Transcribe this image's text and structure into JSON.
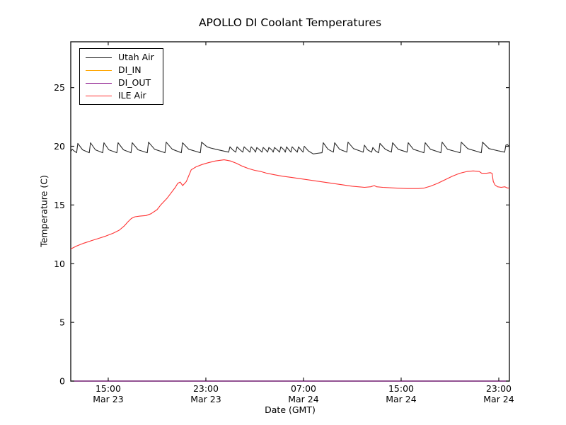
{
  "chart_data": {
    "type": "line",
    "title": "APOLLO DI Coolant Temperatures",
    "xlabel": "Date (GMT)",
    "ylabel": "Temperature (C)",
    "xlim": [
      11.93,
      47.87
    ],
    "ylim": [
      0,
      28.9
    ],
    "x_unit": "hours since Mar 23 00:00 GMT",
    "grid": false,
    "legend_position": "upper-left",
    "yticks": [
      0,
      5,
      10,
      15,
      20,
      25
    ],
    "xticks": [
      {
        "t": 15,
        "time": "15:00",
        "date": "Mar 23"
      },
      {
        "t": 23,
        "time": "23:00",
        "date": "Mar 23"
      },
      {
        "t": 31,
        "time": "07:00",
        "date": "Mar 24"
      },
      {
        "t": 39,
        "time": "15:00",
        "date": "Mar 24"
      },
      {
        "t": 47,
        "time": "23:00",
        "date": "Mar 24"
      }
    ],
    "series": [
      {
        "name": "Utah Air",
        "color": "#2b2b2b",
        "points": [
          [
            11.93,
            19.55
          ],
          [
            12.05,
            19.75
          ],
          [
            12.2,
            19.6
          ],
          [
            12.41,
            19.45
          ],
          [
            12.51,
            20.25
          ],
          [
            12.9,
            19.7
          ],
          [
            13.45,
            19.45
          ],
          [
            13.55,
            20.3
          ],
          [
            13.95,
            19.7
          ],
          [
            14.55,
            19.45
          ],
          [
            14.65,
            20.3
          ],
          [
            15.05,
            19.7
          ],
          [
            15.71,
            19.45
          ],
          [
            15.81,
            20.3
          ],
          [
            16.25,
            19.7
          ],
          [
            16.87,
            19.45
          ],
          [
            16.97,
            20.3
          ],
          [
            17.45,
            19.7
          ],
          [
            18.2,
            19.45
          ],
          [
            18.3,
            20.35
          ],
          [
            18.8,
            19.75
          ],
          [
            19.65,
            19.45
          ],
          [
            19.75,
            20.35
          ],
          [
            20.25,
            19.75
          ],
          [
            20.99,
            19.45
          ],
          [
            21.09,
            20.3
          ],
          [
            21.6,
            19.75
          ],
          [
            22.55,
            19.45
          ],
          [
            22.65,
            20.35
          ],
          [
            23.1,
            19.95
          ],
          [
            23.4,
            19.85
          ],
          [
            23.8,
            19.75
          ],
          [
            24.87,
            19.5
          ],
          [
            24.97,
            19.95
          ],
          [
            25.2,
            19.7
          ],
          [
            25.45,
            19.5
          ],
          [
            25.55,
            19.95
          ],
          [
            25.8,
            19.7
          ],
          [
            26.03,
            19.5
          ],
          [
            26.13,
            19.95
          ],
          [
            26.4,
            19.7
          ],
          [
            26.61,
            19.5
          ],
          [
            26.71,
            19.95
          ],
          [
            26.95,
            19.7
          ],
          [
            27.07,
            19.5
          ],
          [
            27.17,
            19.9
          ],
          [
            27.4,
            19.7
          ],
          [
            27.6,
            19.5
          ],
          [
            27.7,
            19.9
          ],
          [
            27.9,
            19.7
          ],
          [
            28.06,
            19.5
          ],
          [
            28.16,
            19.9
          ],
          [
            28.4,
            19.7
          ],
          [
            28.52,
            19.5
          ],
          [
            28.62,
            19.9
          ],
          [
            28.85,
            19.7
          ],
          [
            29.04,
            19.5
          ],
          [
            29.14,
            19.95
          ],
          [
            29.4,
            19.7
          ],
          [
            29.51,
            19.5
          ],
          [
            29.61,
            19.95
          ],
          [
            29.8,
            19.7
          ],
          [
            29.97,
            19.5
          ],
          [
            30.07,
            19.95
          ],
          [
            30.3,
            19.7
          ],
          [
            30.49,
            19.5
          ],
          [
            30.59,
            19.95
          ],
          [
            30.8,
            19.7
          ],
          [
            30.96,
            19.5
          ],
          [
            31.06,
            20.0
          ],
          [
            31.4,
            19.6
          ],
          [
            31.8,
            19.35
          ],
          [
            32.1,
            19.4
          ],
          [
            32.52,
            19.45
          ],
          [
            32.62,
            20.3
          ],
          [
            33.0,
            19.75
          ],
          [
            33.45,
            19.5
          ],
          [
            33.55,
            20.3
          ],
          [
            33.95,
            19.75
          ],
          [
            34.55,
            19.5
          ],
          [
            34.65,
            20.35
          ],
          [
            35.1,
            19.8
          ],
          [
            35.89,
            19.5
          ],
          [
            35.99,
            20.1
          ],
          [
            36.25,
            19.7
          ],
          [
            36.58,
            19.5
          ],
          [
            36.68,
            19.9
          ],
          [
            36.9,
            19.6
          ],
          [
            37.16,
            19.45
          ],
          [
            37.26,
            20.25
          ],
          [
            37.7,
            19.75
          ],
          [
            38.2,
            19.5
          ],
          [
            38.3,
            20.3
          ],
          [
            38.75,
            19.75
          ],
          [
            39.48,
            19.5
          ],
          [
            39.58,
            20.3
          ],
          [
            40.0,
            19.75
          ],
          [
            40.87,
            19.45
          ],
          [
            40.97,
            20.3
          ],
          [
            41.4,
            19.75
          ],
          [
            42.26,
            19.45
          ],
          [
            42.36,
            20.35
          ],
          [
            42.8,
            19.75
          ],
          [
            43.83,
            19.45
          ],
          [
            43.93,
            20.35
          ],
          [
            44.45,
            19.8
          ],
          [
            45.57,
            19.45
          ],
          [
            45.67,
            20.35
          ],
          [
            46.2,
            19.8
          ],
          [
            47.0,
            19.6
          ],
          [
            47.48,
            19.5
          ],
          [
            47.58,
            20.1
          ],
          [
            47.7,
            20.15
          ],
          [
            47.87,
            19.95
          ]
        ]
      },
      {
        "name": "DI_IN",
        "color": "#ffa500",
        "points": [
          [
            11.93,
            0
          ],
          [
            47.87,
            0
          ]
        ]
      },
      {
        "name": "DI_OUT",
        "color": "#800080",
        "points": [
          [
            11.93,
            0
          ],
          [
            47.87,
            0
          ]
        ]
      },
      {
        "name": "ILE Air",
        "color": "#ff3333",
        "points": [
          [
            11.93,
            11.25
          ],
          [
            12.4,
            11.5
          ],
          [
            13.0,
            11.75
          ],
          [
            13.6,
            11.95
          ],
          [
            14.2,
            12.15
          ],
          [
            14.8,
            12.35
          ],
          [
            15.4,
            12.6
          ],
          [
            15.9,
            12.85
          ],
          [
            16.3,
            13.2
          ],
          [
            16.6,
            13.55
          ],
          [
            16.9,
            13.85
          ],
          [
            17.2,
            14.0
          ],
          [
            17.6,
            14.05
          ],
          [
            18.1,
            14.1
          ],
          [
            18.5,
            14.25
          ],
          [
            19.0,
            14.6
          ],
          [
            19.3,
            15.0
          ],
          [
            19.8,
            15.55
          ],
          [
            20.2,
            16.1
          ],
          [
            20.5,
            16.5
          ],
          [
            20.7,
            16.85
          ],
          [
            20.9,
            16.95
          ],
          [
            21.1,
            16.65
          ],
          [
            21.4,
            17.0
          ],
          [
            21.8,
            18.0
          ],
          [
            22.2,
            18.25
          ],
          [
            22.7,
            18.45
          ],
          [
            23.2,
            18.6
          ],
          [
            23.8,
            18.75
          ],
          [
            24.5,
            18.85
          ],
          [
            25.0,
            18.75
          ],
          [
            25.5,
            18.55
          ],
          [
            26.0,
            18.3
          ],
          [
            26.5,
            18.1
          ],
          [
            27.0,
            17.95
          ],
          [
            27.5,
            17.85
          ],
          [
            28.0,
            17.7
          ],
          [
            28.5,
            17.6
          ],
          [
            29.0,
            17.5
          ],
          [
            29.3,
            17.45
          ],
          [
            30.0,
            17.35
          ],
          [
            31.0,
            17.2
          ],
          [
            32.0,
            17.05
          ],
          [
            33.0,
            16.9
          ],
          [
            34.0,
            16.75
          ],
          [
            35.0,
            16.6
          ],
          [
            36.0,
            16.5
          ],
          [
            36.5,
            16.55
          ],
          [
            36.8,
            16.65
          ],
          [
            37.0,
            16.55
          ],
          [
            37.5,
            16.5
          ],
          [
            38.5,
            16.45
          ],
          [
            39.5,
            16.4
          ],
          [
            40.4,
            16.4
          ],
          [
            40.9,
            16.45
          ],
          [
            41.4,
            16.6
          ],
          [
            42.0,
            16.85
          ],
          [
            42.6,
            17.15
          ],
          [
            43.2,
            17.45
          ],
          [
            43.8,
            17.7
          ],
          [
            44.4,
            17.85
          ],
          [
            44.9,
            17.9
          ],
          [
            45.4,
            17.85
          ],
          [
            45.6,
            17.7
          ],
          [
            46.0,
            17.7
          ],
          [
            46.3,
            17.75
          ],
          [
            46.45,
            17.7
          ],
          [
            46.55,
            17.0
          ],
          [
            46.7,
            16.7
          ],
          [
            46.9,
            16.55
          ],
          [
            47.2,
            16.5
          ],
          [
            47.5,
            16.55
          ],
          [
            47.7,
            16.45
          ],
          [
            47.87,
            16.45
          ]
        ]
      }
    ]
  }
}
